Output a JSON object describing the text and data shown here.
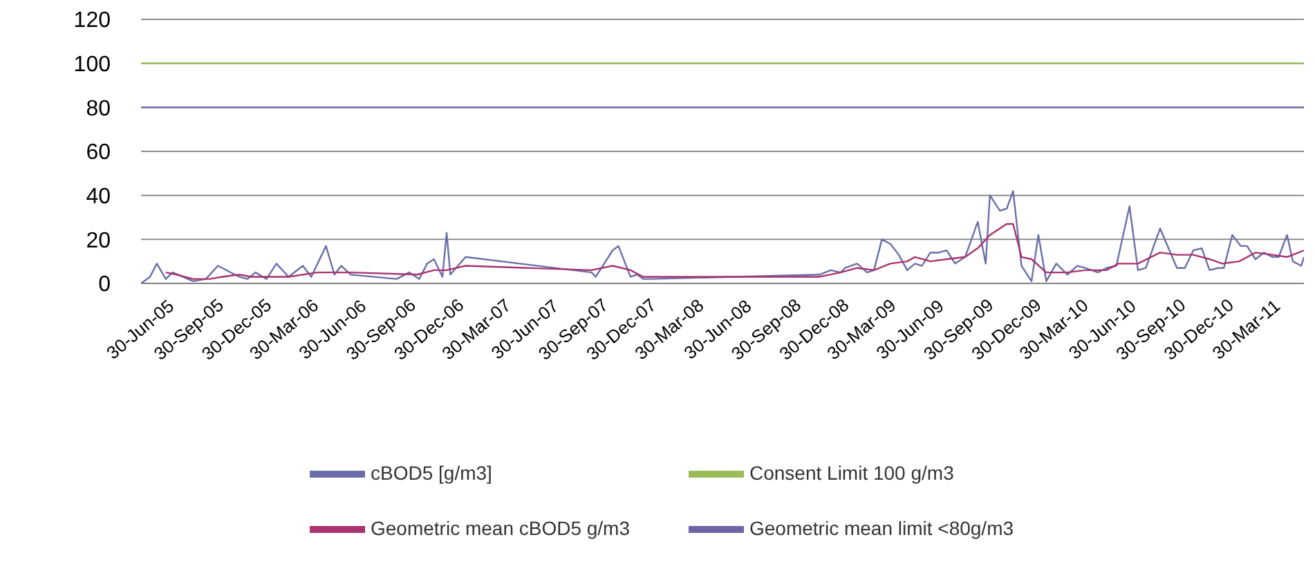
{
  "chart_data": {
    "type": "line",
    "legend": "bottom",
    "grid": "y",
    "marker": "none",
    "line_style": "solid",
    "ylim": [
      0,
      120
    ],
    "yticks": [
      0,
      20,
      40,
      60,
      80,
      100,
      120
    ],
    "xlim": [
      "2005-06-30",
      "2011-07-16"
    ],
    "xticks": [
      {
        "value": "2005-06-30",
        "label": "30-Jun-05"
      },
      {
        "value": "2005-09-30",
        "label": "30-Sep-05"
      },
      {
        "value": "2005-12-30",
        "label": "30-Dec-05"
      },
      {
        "value": "2006-03-30",
        "label": "30-Mar-06"
      },
      {
        "value": "2006-06-30",
        "label": "30-Jun-06"
      },
      {
        "value": "2006-09-30",
        "label": "30-Sep-06"
      },
      {
        "value": "2006-12-30",
        "label": "30-Dec-06"
      },
      {
        "value": "2007-03-30",
        "label": "30-Mar-07"
      },
      {
        "value": "2007-06-30",
        "label": "30-Jun-07"
      },
      {
        "value": "2007-09-30",
        "label": "30-Sep-07"
      },
      {
        "value": "2007-12-30",
        "label": "30-Dec-07"
      },
      {
        "value": "2008-03-30",
        "label": "30-Mar-08"
      },
      {
        "value": "2008-06-30",
        "label": "30-Jun-08"
      },
      {
        "value": "2008-09-30",
        "label": "30-Sep-08"
      },
      {
        "value": "2008-12-30",
        "label": "30-Dec-08"
      },
      {
        "value": "2009-03-30",
        "label": "30-Mar-09"
      },
      {
        "value": "2009-06-30",
        "label": "30-Jun-09"
      },
      {
        "value": "2009-09-30",
        "label": "30-Sep-09"
      },
      {
        "value": "2009-12-30",
        "label": "30-Dec-09"
      },
      {
        "value": "2010-03-30",
        "label": "30-Mar-10"
      },
      {
        "value": "2010-06-30",
        "label": "30-Jun-10"
      },
      {
        "value": "2010-09-30",
        "label": "30-Sep-10"
      },
      {
        "value": "2010-12-30",
        "label": "30-Dec-10"
      },
      {
        "value": "2011-03-30",
        "label": "30-Mar-11"
      }
    ],
    "series": [
      {
        "name": "cBOD5 [g/m3]",
        "color": "#6a6ea8",
        "x": [
          "2005-06-30",
          "2005-07-17",
          "2005-07-30",
          "2005-08-16",
          "2005-08-29",
          "2005-10-07",
          "2005-10-31",
          "2005-11-23",
          "2006-01-02",
          "2006-01-18",
          "2006-02-02",
          "2006-02-23",
          "2006-03-14",
          "2006-04-06",
          "2006-05-03",
          "2006-05-19",
          "2006-06-16",
          "2006-07-02",
          "2006-07-15",
          "2006-08-02",
          "2006-10-28",
          "2006-11-21",
          "2006-12-10",
          "2006-12-25",
          "2007-01-07",
          "2007-01-23",
          "2007-01-31",
          "2007-02-07",
          "2007-03-08",
          "2007-11-02",
          "2007-11-10",
          "2007-12-12",
          "2007-12-23",
          "2008-01-15",
          "2008-01-28",
          "2008-02-08",
          "2008-02-24",
          "2009-01-08",
          "2009-01-29",
          "2009-02-17",
          "2009-02-25",
          "2009-03-20",
          "2009-04-08",
          "2009-04-21",
          "2009-05-06",
          "2009-05-22",
          "2009-06-07",
          "2009-06-23",
          "2009-07-08",
          "2009-07-21",
          "2009-08-06",
          "2009-08-22",
          "2009-09-06",
          "2009-09-22",
          "2009-10-11",
          "2009-11-04",
          "2009-11-19",
          "2009-11-27",
          "2009-12-16",
          "2009-12-29",
          "2010-01-10",
          "2010-01-26",
          "2010-02-14",
          "2010-02-27",
          "2010-03-14",
          "2010-04-02",
          "2010-04-23",
          "2010-05-12",
          "2010-05-27",
          "2010-06-20",
          "2010-07-06",
          "2010-07-25",
          "2010-08-19",
          "2010-09-04",
          "2010-09-19",
          "2010-10-16",
          "2010-11-17",
          "2010-12-02",
          "2010-12-18",
          "2011-01-03",
          "2011-01-18",
          "2011-02-03",
          "2011-02-14",
          "2011-03-02",
          "2011-03-18",
          "2011-03-30",
          "2011-04-15",
          "2011-05-01",
          "2011-05-17",
          "2011-05-29",
          "2011-06-14",
          "2011-06-25",
          "2011-07-11",
          "2011-07-16"
        ],
        "values": [
          0,
          3,
          9,
          2,
          5,
          1,
          2,
          8,
          3,
          2,
          5,
          2,
          9,
          3,
          8,
          3,
          17,
          4,
          8,
          4,
          2,
          5,
          2,
          9,
          11,
          3,
          23,
          4,
          12,
          5,
          3,
          15,
          17,
          3,
          4,
          2,
          2,
          4,
          6,
          5,
          7,
          9,
          5,
          6,
          20,
          18,
          13,
          6,
          9,
          8,
          14,
          14,
          15,
          9,
          12,
          28,
          9,
          40,
          33,
          34,
          42,
          8,
          1,
          22,
          1,
          9,
          4,
          8,
          7,
          5,
          7,
          8,
          35,
          6,
          7,
          25,
          7,
          7,
          15,
          16,
          6,
          7,
          7,
          22,
          17,
          17,
          11,
          14,
          12,
          12,
          22,
          10,
          8,
          12
        ]
      },
      {
        "name": "Consent Limit 100 g/m3",
        "color": "#9bbb59",
        "x": [
          "2005-06-30",
          "2011-07-16"
        ],
        "values": [
          100,
          100
        ]
      },
      {
        "name": "Geometric mean cBOD5 g/m3",
        "color": "#a8336e",
        "x": [
          "2005-08-16",
          "2005-09-05",
          "2005-10-07",
          "2005-11-07",
          "2005-12-01",
          "2006-01-02",
          "2006-01-25",
          "2006-02-26",
          "2006-04-06",
          "2006-05-31",
          "2006-07-02",
          "2006-08-02",
          "2006-12-06",
          "2007-01-07",
          "2007-01-31",
          "2007-03-08",
          "2007-11-02",
          "2007-12-12",
          "2008-01-15",
          "2008-02-08",
          "2008-02-28",
          "2009-01-08",
          "2009-02-17",
          "2009-03-20",
          "2009-04-21",
          "2009-05-22",
          "2009-06-23",
          "2009-07-08",
          "2009-08-06",
          "2009-09-06",
          "2009-10-11",
          "2009-11-04",
          "2009-11-27",
          "2009-12-29",
          "2010-01-10",
          "2010-01-26",
          "2010-02-14",
          "2010-03-14",
          "2010-04-23",
          "2010-05-27",
          "2010-07-06",
          "2010-07-29",
          "2010-09-04",
          "2010-10-16",
          "2010-11-17",
          "2010-12-18",
          "2011-01-18",
          "2011-02-11",
          "2011-03-15",
          "2011-04-15",
          "2011-05-17",
          "2011-06-14",
          "2011-07-16"
        ],
        "values": [
          5,
          4,
          2,
          2,
          3,
          4,
          3,
          3,
          3,
          5,
          5,
          5,
          4,
          6,
          6,
          8,
          6,
          8,
          6,
          3,
          3,
          3,
          5,
          7,
          6,
          9,
          10,
          12,
          10,
          11,
          12,
          16,
          22,
          27,
          27,
          12,
          11,
          5,
          5,
          6,
          6,
          9,
          9,
          14,
          13,
          13,
          11,
          9,
          10,
          14,
          13,
          12,
          15
        ]
      },
      {
        "name": "Geometric mean limit <80g/m3",
        "color": "#6e64a6",
        "x": [
          "2005-06-30",
          "2011-07-16"
        ],
        "values": [
          80,
          80
        ]
      }
    ]
  }
}
